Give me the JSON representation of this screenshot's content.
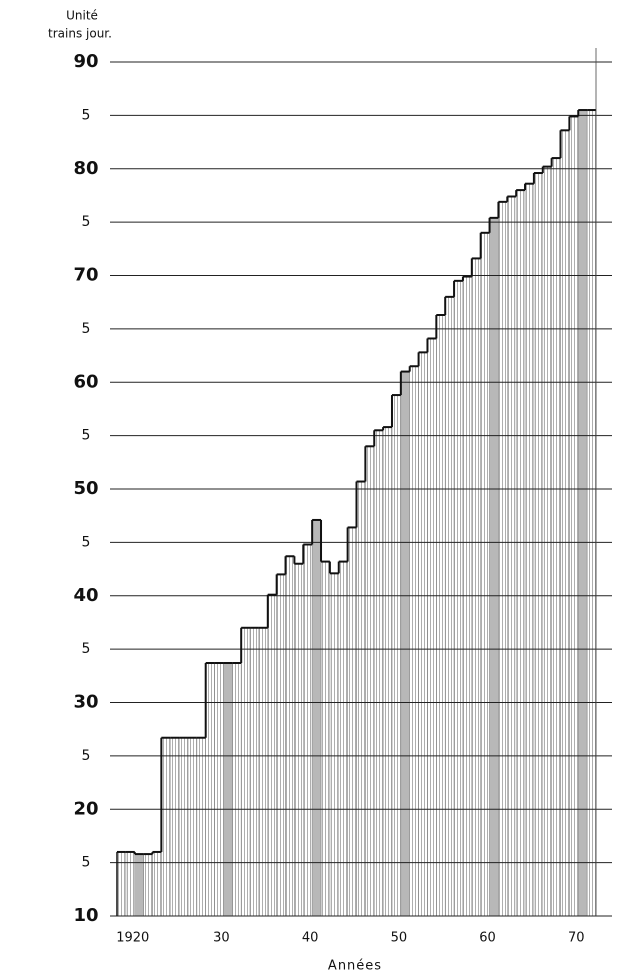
{
  "chart_data": {
    "type": "step-bar",
    "y_label_line1": "Unité",
    "y_label_line2": "trains jour.",
    "x_label": "Années",
    "x": [
      1918,
      1919,
      1920,
      1921,
      1922,
      1923,
      1924,
      1925,
      1926,
      1927,
      1928,
      1929,
      1930,
      1931,
      1932,
      1933,
      1934,
      1935,
      1936,
      1937,
      1938,
      1939,
      1940,
      1941,
      1942,
      1943,
      1944,
      1945,
      1946,
      1947,
      1948,
      1949,
      1950,
      1951,
      1952,
      1953,
      1954,
      1955,
      1956,
      1957,
      1958,
      1959,
      1960,
      1961,
      1962,
      1963,
      1964,
      1965,
      1966,
      1967,
      1968,
      1969,
      1970,
      1971
    ],
    "values": [
      16,
      16,
      15.8,
      15.8,
      16,
      26.7,
      26.7,
      26.7,
      26.7,
      26.7,
      33.7,
      33.7,
      33.7,
      33.7,
      37,
      37,
      37,
      40.1,
      42,
      43.7,
      43,
      44.8,
      47.1,
      43.2,
      42.1,
      43.2,
      46.4,
      50.7,
      54,
      55.5,
      55.8,
      58.8,
      61,
      61.5,
      62.8,
      64.1,
      66.3,
      68,
      69.5,
      69.9,
      71.6,
      74,
      75.4,
      76.9,
      77.4,
      78,
      78.6,
      79.6,
      80.2,
      81,
      83.6,
      84.9,
      85.5,
      85.5
    ],
    "xlim": [
      1918,
      1972
    ],
    "xticks": [
      {
        "value": 1920,
        "label": "1920"
      },
      {
        "value": 1930,
        "label": "30"
      },
      {
        "value": 1940,
        "label": "40"
      },
      {
        "value": 1950,
        "label": "50"
      },
      {
        "value": 1960,
        "label": "60"
      },
      {
        "value": 1970,
        "label": "70"
      }
    ],
    "ylim": [
      10,
      90
    ],
    "yticks": [
      10,
      {
        "value": 15,
        "label": "5"
      },
      20,
      {
        "value": 25,
        "label": "5"
      },
      30,
      {
        "value": 35,
        "label": "5"
      },
      40,
      {
        "value": 45,
        "label": "5"
      },
      50,
      {
        "value": 55,
        "label": "5"
      },
      60,
      {
        "value": 65,
        "label": "5"
      },
      70,
      {
        "value": 75,
        "label": "5"
      },
      80,
      {
        "value": 85,
        "label": "5"
      },
      90
    ],
    "grid": true,
    "color": "#111111",
    "highlight_color": "#b8b8b8"
  }
}
